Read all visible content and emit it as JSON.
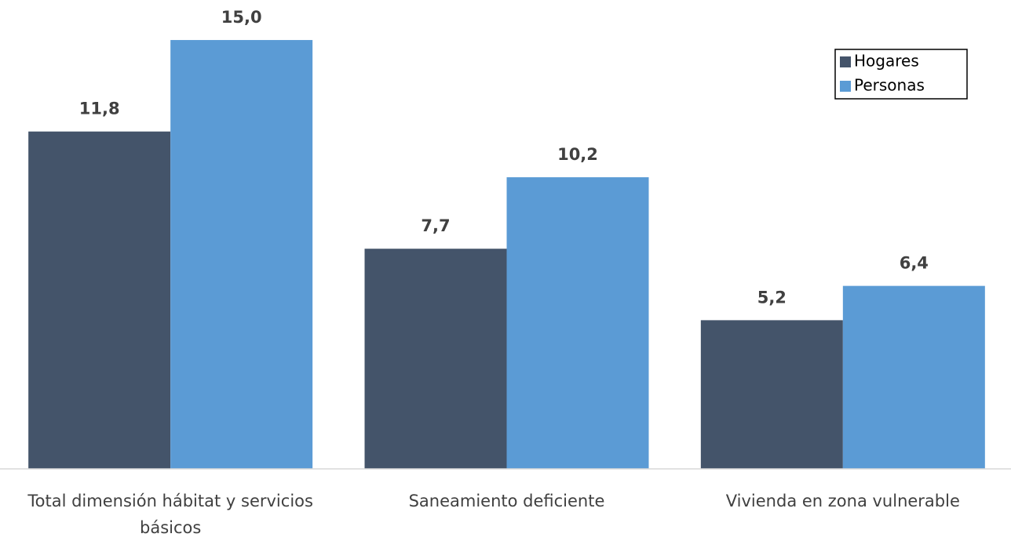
{
  "chart_data": {
    "type": "bar",
    "categories": [
      "Total dimensión hábitat y servicios básicos",
      "Saneamiento deficiente",
      "Vivienda en zona vulnerable"
    ],
    "series": [
      {
        "name": "Hogares",
        "color": "#44546a",
        "values": [
          11.8,
          7.7,
          5.2
        ],
        "value_labels": [
          "11,8",
          "7,7",
          "5,2"
        ]
      },
      {
        "name": "Personas",
        "color": "#5b9bd5",
        "values": [
          15.0,
          10.2,
          6.4
        ],
        "value_labels": [
          "15,0",
          "10,2",
          "6,4"
        ]
      }
    ],
    "ylim": [
      0,
      16.4
    ],
    "legend": "upper right"
  }
}
